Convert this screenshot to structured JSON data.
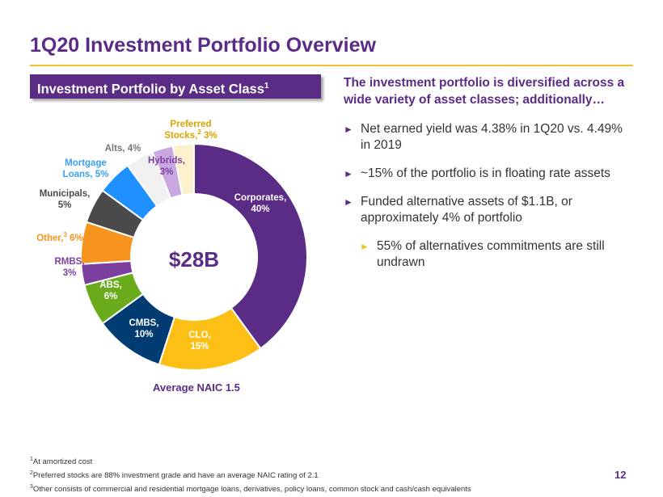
{
  "header": {
    "title": "1Q20 Investment Portfolio Overview"
  },
  "section": {
    "label": "Investment Portfolio by Asset Class",
    "sup": "1"
  },
  "chart_data": {
    "type": "pie",
    "donut": true,
    "center_label": "$28B",
    "footer": "Average NAIC 1.5",
    "slices": [
      {
        "name": "Corporates,",
        "value_label": "40%",
        "value": 40,
        "color": "#5b2c86",
        "label_color": "#ffffff"
      },
      {
        "name": "CLO,",
        "value_label": "15%",
        "value": 15,
        "color": "#fbbf16",
        "label_color": "#ffffff"
      },
      {
        "name": "CMBS,",
        "value_label": "10%",
        "value": 10,
        "color": "#003b71",
        "label_color": "#ffffff"
      },
      {
        "name": "ABS,",
        "value_label": "6%",
        "value": 6,
        "color": "#6aab1c",
        "label_color": "#ffffff"
      },
      {
        "name": "RMBS,",
        "value_label": "3%",
        "value": 3,
        "color": "#7b3fa0",
        "label_color": "#7b3fa0"
      },
      {
        "name": "Other,",
        "sup": "3",
        "value_label": " 6%",
        "value": 6,
        "color": "#f7941d",
        "label_color": "#f7941d"
      },
      {
        "name": "Municipals,",
        "value_label": "5%",
        "value": 5,
        "color": "#4a4a4a",
        "label_color": "#4a4a4a"
      },
      {
        "name": "Mortgage",
        "name2": "Loans, 5%",
        "value": 5,
        "color": "#1e90ff",
        "label_color": "#3aa0f0"
      },
      {
        "name": "Alts, 4%",
        "value": 4,
        "color": "#f0f0f0",
        "label_color": "#777777"
      },
      {
        "name": "Hybrids,",
        "value_label": "3%",
        "value": 3,
        "color": "#c9a8e0",
        "label_color": "#7b3fa0"
      },
      {
        "name": "Preferred",
        "name2": "Stocks,",
        "sup": "2",
        "value_label": " 3%",
        "value": 3,
        "color": "#fdf0cc",
        "label_color": "#d9a400"
      }
    ]
  },
  "right": {
    "heading": "The investment portfolio is diversified across a wide variety of asset classes; additionally…",
    "bullets": [
      {
        "text": "Net earned yield was 4.38% in 1Q20 vs. 4.49% in 2019"
      },
      {
        "text": "~15% of the portfolio is in floating rate assets"
      },
      {
        "text": "Funded alternative assets of $1.1B, or approximately 4% of portfolio"
      },
      {
        "text": "55% of alternatives commitments are still undrawn"
      }
    ],
    "bullet_glyph": "►"
  },
  "footnotes": [
    {
      "num": "1",
      "text": "At amortized cost"
    },
    {
      "num": "2",
      "text": "Preferred stocks are 88% investment grade and have an average NAIC rating of 2.1"
    },
    {
      "num": "3",
      "text": "Other consists of commercial and residential mortgage loans, derivatives, policy loans, common stock and cash/cash equivalents"
    }
  ],
  "page_number": "12"
}
